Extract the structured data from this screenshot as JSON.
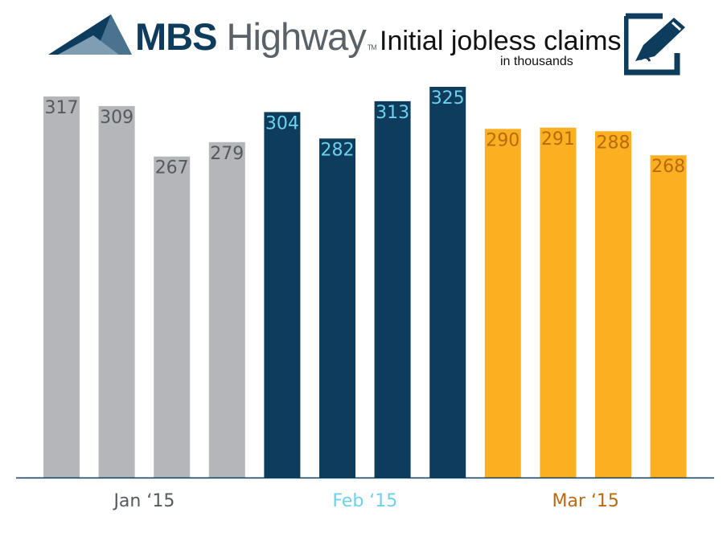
{
  "brand": {
    "name_strong": "MBS",
    "name_light": "Highway",
    "trademark": "TM"
  },
  "colors": {
    "jan": "#b5b6b9",
    "feb": "#0d3c5c",
    "mar": "#fbb021",
    "jan_label": "#555a5e",
    "feb_label": "#6fd0ec",
    "mar_label": "#b86a0e",
    "axis": "#0d3c5c"
  },
  "icons": {
    "logo": "mountain-logo-icon",
    "pen": "pen-document-icon"
  },
  "chart_data": {
    "type": "bar",
    "title": "Initial jobless claims",
    "subtitle": "in thousands",
    "ylim": [
      0,
      325
    ],
    "grid": false,
    "groups": [
      {
        "label": "Jan ‘15",
        "values": [
          317,
          309,
          267,
          279
        ],
        "color_key": "jan"
      },
      {
        "label": "Feb ‘15",
        "values": [
          304,
          282,
          313,
          325
        ],
        "color_key": "feb"
      },
      {
        "label": "Mar ‘15",
        "values": [
          290,
          291,
          288,
          268
        ],
        "color_key": "mar"
      }
    ]
  }
}
